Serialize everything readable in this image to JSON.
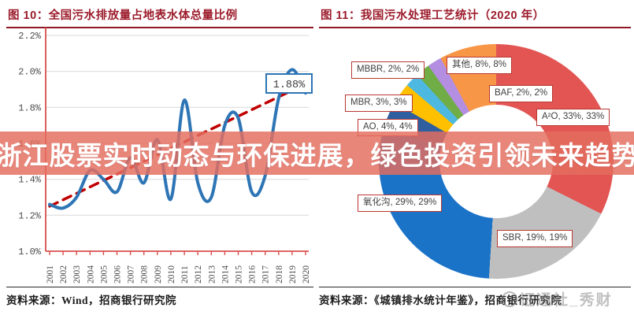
{
  "banner": {
    "text": "浙江股票实时动态与环保进展，绿色投资引领未来趋势",
    "background_color": "#e46e5f",
    "text_color": "#ffffff"
  },
  "left_panel": {
    "title": "图 10：全国污水排放量占地表水体总量比例",
    "source": "资料来源：Wind，招商银行研究院",
    "title_color": "#9c1b2b"
  },
  "right_panel": {
    "title": "图 11：我国污水处理工艺统计（2020 年）",
    "source": "资料来源：《城镇排水统计年鉴》，招商银行研究院",
    "watermark": "证通社_秀财",
    "title_color": "#9c1b2b"
  },
  "chart_data": [
    {
      "type": "line",
      "title": "全国污水排放量占地表水体总量比例",
      "x": [
        "2001",
        "2002",
        "2003",
        "2004",
        "2005",
        "2006",
        "2007",
        "2008",
        "2009",
        "2010",
        "2011",
        "2012",
        "2013",
        "2014",
        "2015",
        "2016",
        "2017",
        "2018",
        "2019",
        "2020"
      ],
      "series": [
        {
          "name": "污水排放量占比",
          "color": "#2e75b6",
          "style": "solid",
          "values": [
            1.26,
            1.24,
            1.3,
            1.45,
            1.4,
            1.33,
            1.52,
            1.38,
            1.62,
            1.29,
            1.84,
            1.38,
            1.3,
            1.7,
            1.74,
            1.33,
            1.42,
            1.85,
            2.01,
            1.88
          ]
        },
        {
          "name": "趋势线",
          "color": "#c00000",
          "style": "dashed",
          "trend": true,
          "start": 1.25,
          "end": 1.93
        }
      ],
      "ylim": [
        1.0,
        2.2
      ],
      "yticks": [
        "2.2%",
        "2.0%",
        "1.8%",
        "1.6%",
        "1.4%",
        "1.2%",
        "1.0%"
      ],
      "grid": true,
      "axis_color": "#d94f4b",
      "annotation": {
        "text": "1.88%",
        "x": "2020",
        "y": 1.88,
        "box_border_color": "#2e75b6"
      }
    },
    {
      "type": "pie",
      "donut": true,
      "title": "我国污水处理工艺统计（2020 年）",
      "slices": [
        {
          "label": "A²O",
          "value": 33,
          "display": "A²O, 33%, 33%",
          "color": "#e25553"
        },
        {
          "label": "SBR",
          "value": 19,
          "display": "SBR, 19%, 19%",
          "color": "#bfbfbf"
        },
        {
          "label": "氧化沟",
          "value": 29,
          "display": "氧化沟, 29%, 29%",
          "color": "#1b73c8"
        },
        {
          "label": "AO",
          "value": 4,
          "display": "AO, 4%, 4%",
          "color": "#2f5f9e"
        },
        {
          "label": "MBR",
          "value": 3,
          "display": "MBR, 3%, 3%",
          "color": "#ffc000"
        },
        {
          "label": "MBBR",
          "value": 2,
          "display": "MBBR, 2%, 2%",
          "color": "#4db8e0"
        },
        {
          "label": "BAF",
          "value": 2,
          "display": "BAF, 2%, 2%",
          "color": "#70ad47"
        },
        {
          "label": "其他",
          "value": 8,
          "display": "其他, 8%, 8%",
          "color": "#f79646"
        }
      ],
      "unlabeled_sliver": {
        "value": 2,
        "color": "#b48ee0",
        "insert_index": 7
      },
      "label_positions": {
        "MBBR": [
          41,
          74
        ],
        "MBR": [
          33,
          116
        ],
        "AO": [
          49,
          147
        ],
        "其他": [
          162,
          68
        ],
        "BAF": [
          216,
          104
        ],
        "A²O": [
          276,
          134
        ],
        "氧化沟": [
          49,
          243
        ],
        "SBR": [
          226,
          288
        ]
      },
      "legend_position": "none"
    }
  ]
}
